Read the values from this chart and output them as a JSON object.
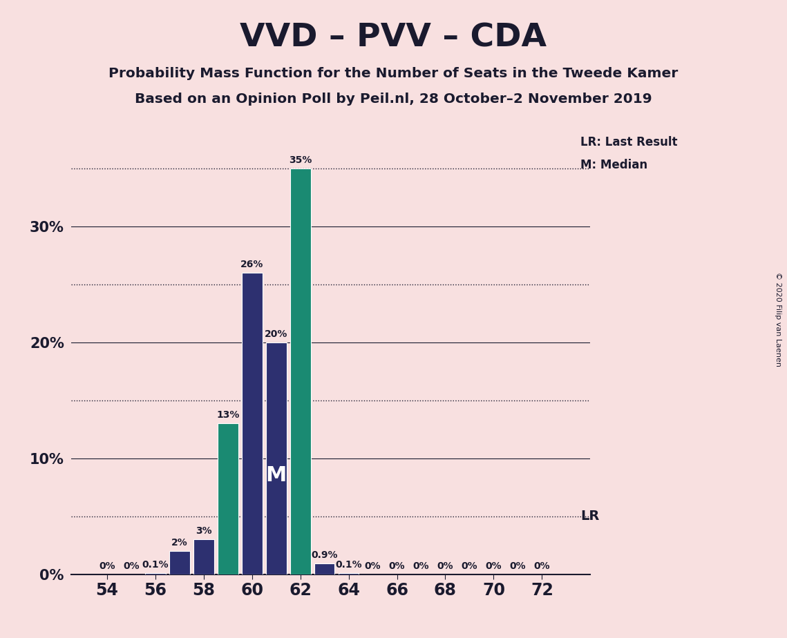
{
  "title": "VVD – PVV – CDA",
  "subtitle1": "Probability Mass Function for the Number of Seats in the Tweede Kamer",
  "subtitle2": "Based on an Opinion Poll by Peil.nl, 28 October–2 November 2019",
  "copyright": "© 2020 Filip van Laenen",
  "seats": [
    54,
    55,
    56,
    57,
    58,
    59,
    60,
    61,
    62,
    63,
    64,
    65,
    66,
    67,
    68,
    69,
    70,
    71,
    72
  ],
  "probabilities": [
    0.0,
    0.0,
    0.001,
    0.02,
    0.03,
    0.13,
    0.26,
    0.2,
    0.35,
    0.009,
    0.001,
    0.0,
    0.0,
    0.0,
    0.0,
    0.0,
    0.0,
    0.0,
    0.0
  ],
  "bar_colors": [
    "#2d3070",
    "#2d3070",
    "#2d3070",
    "#2d3070",
    "#2d3070",
    "#1a8a72",
    "#2d3070",
    "#2d3070",
    "#1a8a72",
    "#2d3070",
    "#2d3070",
    "#2d3070",
    "#2d3070",
    "#2d3070",
    "#2d3070",
    "#2d3070",
    "#2d3070",
    "#2d3070",
    "#2d3070"
  ],
  "median_seat": 61,
  "lr_value": 0.05,
  "background_color": "#f8e0e0",
  "grid_solid_levels": [
    0.0,
    0.1,
    0.2,
    0.3
  ],
  "grid_dotted_levels": [
    0.05,
    0.15,
    0.25,
    0.35
  ],
  "ylabel_ticks": [
    0.0,
    0.1,
    0.2,
    0.3
  ],
  "ylabel_labels": [
    "0%",
    "10%",
    "20%",
    "30%"
  ],
  "xtick_seats": [
    54,
    56,
    58,
    60,
    62,
    64,
    66,
    68,
    70,
    72
  ],
  "ylim": [
    0,
    0.385
  ],
  "xlim": [
    52.5,
    74.0
  ],
  "bar_labels": {
    "54": "0%",
    "55": "0%",
    "56": "0.1%",
    "57": "2%",
    "58": "3%",
    "59": "13%",
    "60": "26%",
    "61": "20%",
    "62": "35%",
    "63": "0.9%",
    "64": "0.1%",
    "65": "0%",
    "66": "0%",
    "67": "0%",
    "68": "0%",
    "69": "0%",
    "70": "0%",
    "71": "0%",
    "72": "0%"
  }
}
